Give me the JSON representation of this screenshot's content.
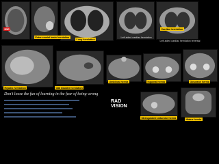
{
  "labels": {
    "dwi": "DWI",
    "extracranial": "Extra cranial brain herniation",
    "lung": "Lung herniation",
    "left_cardiac": "Left-sided cardiac herniation",
    "cardiac": "Cardiac herniation",
    "cardiac_reversal": "Left-sided cardiac herniation reversal",
    "hepatic": "Hepatic herniation",
    "gallbladder": "Gall bladder herniation",
    "umbilical": "Umbilical hernia",
    "inguinal": "Inguinal hernia",
    "obturator": "Obturator hernia",
    "strangulated": "Strangulated obturator hernia",
    "hiatus": "Hiatus hernia"
  },
  "quote": "Don't loose the fun of learning in the fear of being wrong",
  "logo": {
    "line1": "RAD",
    "line2": "VISION"
  }
}
